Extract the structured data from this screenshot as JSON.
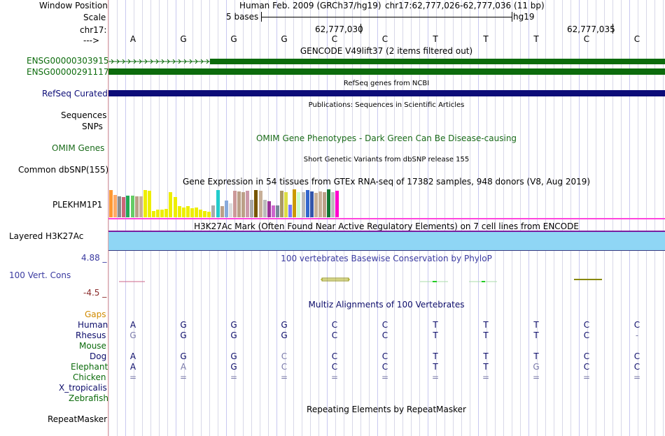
{
  "labels": {
    "window_position": "Window Position",
    "scale": "Scale",
    "chrom": "chr17:",
    "arrow": "--->",
    "ensg1": "ENSG00000303915",
    "ensg2": "ENSG00000291117",
    "refseq": "RefSeq Curated",
    "sequences": "Sequences",
    "snps": "SNPs",
    "omim": "OMIM Genes",
    "dbsnp": "Common dbSNP(155)",
    "gtex": "PLEKHM1P1",
    "h3k27ac": "Layered H3K27Ac",
    "phylop_max": "4.88 _",
    "phylop": "100 Vert. Cons",
    "phylop_min": "-4.5 _",
    "gaps": "Gaps",
    "human": "Human",
    "rhesus": "Rhesus",
    "mouse": "Mouse",
    "dog": "Dog",
    "elephant": "Elephant",
    "chicken": "Chicken",
    "xtrop": "X_tropicalis",
    "zebrafish": "Zebrafish",
    "repeatmasker": "RepeatMasker"
  },
  "colors": {
    "gencode": "#0c6b0c",
    "refseq": "#0c0c78",
    "omim_label": "#1a6b1a",
    "h3k27ac": "#8fd6f5",
    "h3k27ac_border": "#7a1fa0",
    "gtex_border": "#ff44dd",
    "phylop_label": "#3a3aa0",
    "gaps_label": "#d08a00",
    "species_blue": "#0c0c6a",
    "species_green": "#0c6b0c",
    "faded": "#7a7aaa"
  },
  "header": {
    "assembly": "Human Feb. 2009 (GRCh37/hg19)",
    "position": "chr17:62,777,026-62,777,036 (11 bp)",
    "scale_text": "5 bases",
    "scale_db": "hg19",
    "coord1": "62,777,030",
    "coord2": "62,777,035"
  },
  "sequence": [
    "A",
    "G",
    "G",
    "G",
    "C",
    "C",
    "T",
    "T",
    "T",
    "C",
    "C"
  ],
  "tracks": {
    "gencode_title": "GENCODE V49lift37 (2 items filtered out)",
    "refseq_title": "RefSeq genes from NCBI",
    "publications_title": "Publications: Sequences in Scientific Articles",
    "omim_title": "OMIM Gene Phenotypes - Dark Green Can Be Disease-causing",
    "dbsnp_title": "Short Genetic Variants from dbSNP release 155",
    "gtex_title": "Gene Expression in 54 tissues from GTEx RNA-seq of 17382 samples, 948 donors (V8, Aug 2019)",
    "h3k27ac_title": "H3K27Ac Mark (Often Found Near Active Regulatory Elements) on 7 cell lines from ENCODE",
    "phylop_title": "100 vertebrates Basewise Conservation by PhyloP",
    "multiz_title": "Multiz Alignments of 100 Vertebrates",
    "repeat_title": "Repeating Elements by RepeatMasker"
  },
  "alignments": {
    "human": [
      "A",
      "G",
      "G",
      "G",
      "C",
      "C",
      "T",
      "T",
      "T",
      "C",
      "C"
    ],
    "rhesus": [
      "G",
      "G",
      "G",
      "G",
      "C",
      "C",
      "T",
      "T",
      "T",
      "C",
      "-"
    ],
    "dog": [
      "A",
      "G",
      "G",
      "C",
      "C",
      "C",
      "T",
      "T",
      "T",
      "C",
      "C"
    ],
    "elephant": [
      "A",
      "A",
      "G",
      "C",
      "C",
      "C",
      "T",
      "T",
      "G",
      "C",
      "C"
    ],
    "chicken": [
      "=",
      "=",
      "=",
      "=",
      "=",
      "=",
      "=",
      "=",
      "=",
      "=",
      "="
    ]
  },
  "gtex_tissues": [
    {
      "color": "#ff9933",
      "value": 0.95
    },
    {
      "color": "#ffaa66",
      "value": 0.78
    },
    {
      "color": "#8c8c8c",
      "value": 0.72
    },
    {
      "color": "#cc6677",
      "value": 0.7
    },
    {
      "color": "#22aa55",
      "value": 0.75
    },
    {
      "color": "#66cc66",
      "value": 0.75
    },
    {
      "color": "#bba088",
      "value": 0.72
    },
    {
      "color": "#c8b098",
      "value": 0.72
    },
    {
      "color": "#eeee00",
      "value": 0.95
    },
    {
      "color": "#eeee00",
      "value": 0.92
    },
    {
      "color": "#eeee00",
      "value": 0.22
    },
    {
      "color": "#eeee00",
      "value": 0.26
    },
    {
      "color": "#eeee00",
      "value": 0.28
    },
    {
      "color": "#eeee00",
      "value": 0.3
    },
    {
      "color": "#eeee00",
      "value": 0.88
    },
    {
      "color": "#eeee00",
      "value": 0.7
    },
    {
      "color": "#eeee00",
      "value": 0.4
    },
    {
      "color": "#eeee00",
      "value": 0.35
    },
    {
      "color": "#eeee00",
      "value": 0.38
    },
    {
      "color": "#eeee00",
      "value": 0.32
    },
    {
      "color": "#eeee00",
      "value": 0.35
    },
    {
      "color": "#eeee00",
      "value": 0.28
    },
    {
      "color": "#eeee00",
      "value": 0.22
    },
    {
      "color": "#eeee00",
      "value": 0.2
    },
    {
      "color": "#aaaaaa",
      "value": 0.42
    },
    {
      "color": "#22cccc",
      "value": 0.95
    },
    {
      "color": "#bba088",
      "value": 0.38
    },
    {
      "color": "#88aadd",
      "value": 0.58
    },
    {
      "color": "#dddddd",
      "value": 0.48
    },
    {
      "color": "#cc9999",
      "value": 0.92
    },
    {
      "color": "#bba088",
      "value": 0.9
    },
    {
      "color": "#bba088",
      "value": 0.88
    },
    {
      "color": "#cc99aa",
      "value": 0.92
    },
    {
      "color": "#aaaaaa",
      "value": 0.62
    },
    {
      "color": "#775500",
      "value": 0.95
    },
    {
      "color": "#c8b098",
      "value": 0.92
    },
    {
      "color": "#bbbbbb",
      "value": 0.6
    },
    {
      "color": "#993399",
      "value": 0.55
    },
    {
      "color": "#cc66cc",
      "value": 0.42
    },
    {
      "color": "#778899",
      "value": 0.42
    },
    {
      "color": "#aa9966",
      "value": 0.92
    },
    {
      "color": "#dddd44",
      "value": 0.88
    },
    {
      "color": "#7777ff",
      "value": 0.45
    },
    {
      "color": "#cc9900",
      "value": 0.98
    },
    {
      "color": "#ccffcc",
      "value": 0.88
    },
    {
      "color": "#bbbbbb",
      "value": 0.88
    },
    {
      "color": "#3366cc",
      "value": 0.95
    },
    {
      "color": "#3355aa",
      "value": 0.9
    },
    {
      "color": "#c8b098",
      "value": 0.85
    },
    {
      "color": "#c8b098",
      "value": 0.9
    },
    {
      "color": "#bba088",
      "value": 0.88
    },
    {
      "color": "#117733",
      "value": 0.98
    },
    {
      "color": "#bbbbbb",
      "value": 0.88
    },
    {
      "color": "#ff00cc",
      "value": 0.92
    }
  ]
}
